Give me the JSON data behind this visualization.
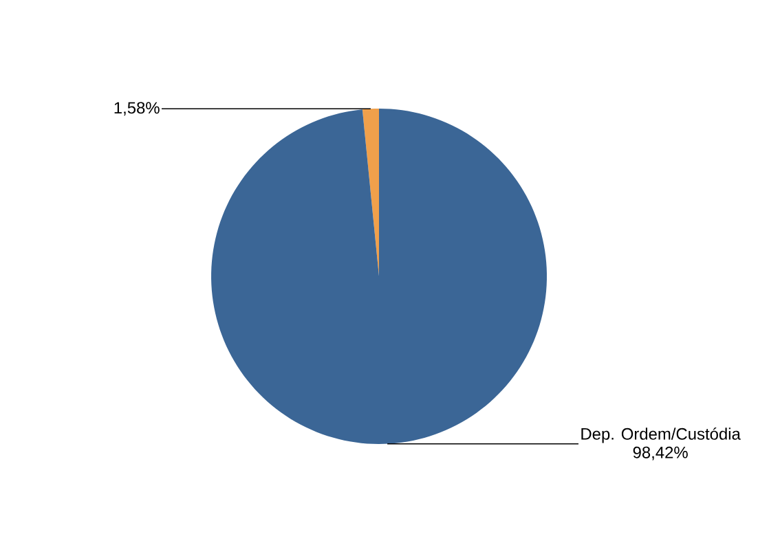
{
  "chart_data": {
    "type": "pie",
    "categories": [
      null,
      "Dep. Ordem/Custódia"
    ],
    "values": [
      1.58,
      98.42
    ],
    "colors": [
      "#f0a04b",
      "#3b6696"
    ],
    "value_labels": [
      "1,58%",
      "98,42%"
    ]
  }
}
